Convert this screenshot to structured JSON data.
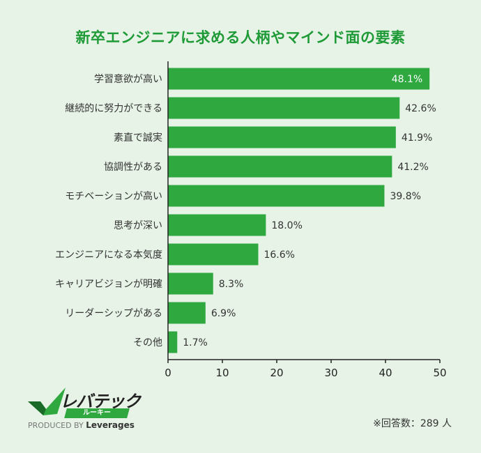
{
  "title": "新卒エンジニアに求める人柄やマインド面の要素",
  "note": "※回答数：289 人",
  "logo": {
    "name": "レバテック",
    "sub": "ルーキー",
    "produced_by": "PRODUCED BY",
    "brand": "Leverages",
    "colors": {
      "check": "#2ea83f",
      "check_dark": "#1a6b27"
    }
  },
  "colors": {
    "bar": "#2ea83f",
    "title": "#1e9a36",
    "background": "#e7f3e7"
  },
  "chart_data": {
    "type": "bar",
    "orientation": "horizontal",
    "title": "新卒エンジニアに求める人柄やマインド面の要素",
    "categories": [
      "学習意欲が高い",
      "継続的に努力ができる",
      "素直で誠実",
      "協調性がある",
      "モチベーションが高い",
      "思考が深い",
      "エンジニアになる本気度",
      "キャリアビジョンが明確",
      "リーダーシップがある",
      "その他"
    ],
    "values": [
      48.1,
      42.6,
      41.9,
      41.2,
      39.8,
      18.0,
      16.6,
      8.3,
      6.9,
      1.7
    ],
    "labels": [
      "48.1%",
      "42.6%",
      "41.9%",
      "41.2%",
      "39.8%",
      "18.0%",
      "16.6%",
      "8.3%",
      "6.9%",
      "1.7%"
    ],
    "xlim": [
      0,
      50
    ],
    "xticks": [
      0,
      10,
      20,
      30,
      40,
      50
    ],
    "grid": false
  }
}
